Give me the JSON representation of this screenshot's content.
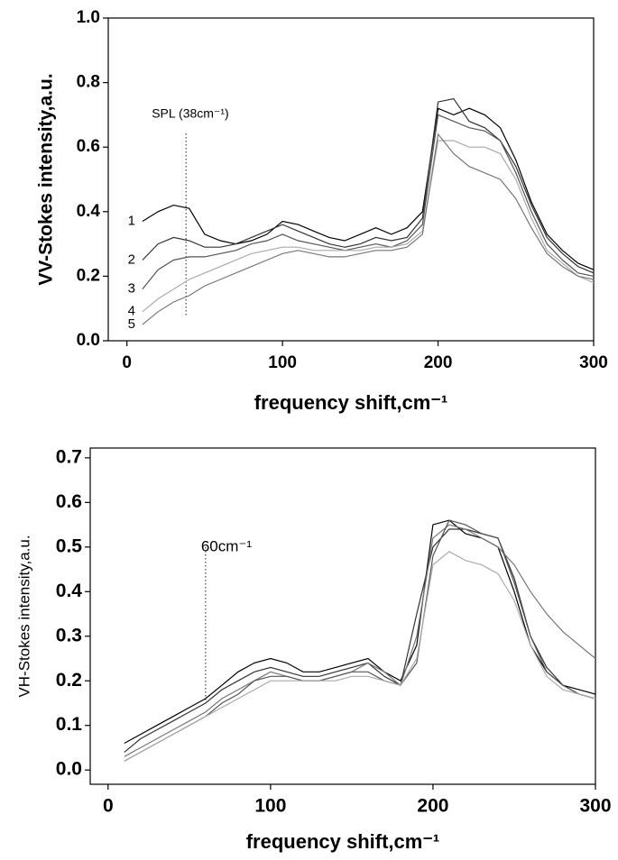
{
  "chart_data": [
    {
      "type": "line",
      "xlabel": "frequency shift,cm⁻¹",
      "ylabel": "VV-Stokes intensity,a.u.",
      "annotation": {
        "text": "SPL (38cm⁻¹)",
        "x": 38
      },
      "x": [
        10,
        20,
        30,
        40,
        50,
        60,
        70,
        80,
        90,
        100,
        110,
        120,
        130,
        140,
        150,
        160,
        170,
        180,
        190,
        200,
        210,
        220,
        230,
        240,
        250,
        260,
        270,
        280,
        290,
        300
      ],
      "xlim": [
        -12,
        300
      ],
      "xticks": [
        0,
        100,
        200,
        300
      ],
      "ylim": [
        0,
        1
      ],
      "yticks": [
        {
          "value": 0,
          "label": "0.0"
        },
        0.2,
        0.4,
        0.6,
        0.8,
        {
          "value": 1,
          "label": "1.0"
        }
      ],
      "series": [
        {
          "name": "1",
          "color": "#000000",
          "values": [
            0.37,
            0.4,
            0.42,
            0.41,
            0.33,
            0.31,
            0.3,
            0.31,
            0.33,
            0.37,
            0.36,
            0.34,
            0.32,
            0.31,
            0.33,
            0.35,
            0.33,
            0.35,
            0.4,
            0.72,
            0.7,
            0.72,
            0.7,
            0.66,
            0.56,
            0.43,
            0.33,
            0.28,
            0.24,
            0.22
          ]
        },
        {
          "name": "2",
          "color": "#333333",
          "values": [
            0.25,
            0.3,
            0.32,
            0.31,
            0.29,
            0.29,
            0.3,
            0.32,
            0.34,
            0.36,
            0.34,
            0.32,
            0.3,
            0.29,
            0.3,
            0.32,
            0.31,
            0.32,
            0.38,
            0.74,
            0.75,
            0.68,
            0.66,
            0.62,
            0.54,
            0.42,
            0.32,
            0.27,
            0.23,
            0.21
          ]
        },
        {
          "name": "3",
          "color": "#555555",
          "values": [
            0.16,
            0.22,
            0.25,
            0.26,
            0.26,
            0.27,
            0.28,
            0.3,
            0.31,
            0.33,
            0.31,
            0.3,
            0.29,
            0.28,
            0.29,
            0.3,
            0.29,
            0.31,
            0.36,
            0.7,
            0.68,
            0.66,
            0.65,
            0.62,
            0.52,
            0.4,
            0.3,
            0.25,
            0.21,
            0.2
          ]
        },
        {
          "name": "4",
          "color": "#aaaaaa",
          "values": [
            0.09,
            0.13,
            0.16,
            0.19,
            0.21,
            0.23,
            0.25,
            0.27,
            0.28,
            0.29,
            0.29,
            0.28,
            0.28,
            0.28,
            0.28,
            0.29,
            0.29,
            0.3,
            0.34,
            0.62,
            0.62,
            0.6,
            0.6,
            0.58,
            0.5,
            0.38,
            0.28,
            0.24,
            0.2,
            0.18
          ]
        },
        {
          "name": "5",
          "color": "#777777",
          "values": [
            0.05,
            0.09,
            0.12,
            0.14,
            0.17,
            0.19,
            0.21,
            0.23,
            0.25,
            0.27,
            0.28,
            0.27,
            0.26,
            0.26,
            0.27,
            0.28,
            0.28,
            0.29,
            0.33,
            0.64,
            0.58,
            0.54,
            0.52,
            0.5,
            0.44,
            0.35,
            0.27,
            0.23,
            0.2,
            0.19
          ]
        }
      ]
    },
    {
      "type": "line",
      "xlabel": "frequency shift,cm⁻¹",
      "ylabel": "VH-Stokes intensity,a.u.",
      "annotation": {
        "text": "60cm⁻¹",
        "x": 60
      },
      "x": [
        10,
        20,
        30,
        40,
        50,
        60,
        70,
        80,
        90,
        100,
        110,
        120,
        130,
        140,
        150,
        160,
        170,
        180,
        190,
        200,
        210,
        220,
        230,
        240,
        250,
        260,
        270,
        280,
        290,
        300
      ],
      "xlim": [
        -11,
        300
      ],
      "xticks": [
        0,
        100,
        200,
        300
      ],
      "ylim": [
        -0.032,
        0.722
      ],
      "yticks": [
        {
          "value": 0,
          "label": "0.0"
        },
        0.1,
        0.2,
        0.3,
        0.4,
        0.5,
        0.6,
        0.7
      ],
      "series": [
        {
          "color": "#000000",
          "values": [
            0.06,
            0.08,
            0.1,
            0.12,
            0.14,
            0.16,
            0.19,
            0.22,
            0.24,
            0.25,
            0.24,
            0.22,
            0.22,
            0.23,
            0.24,
            0.25,
            0.22,
            0.2,
            0.28,
            0.55,
            0.56,
            0.53,
            0.52,
            0.5,
            0.4,
            0.28,
            0.22,
            0.19,
            0.18,
            0.17
          ]
        },
        {
          "color": "#333333",
          "values": [
            0.04,
            0.07,
            0.09,
            0.11,
            0.13,
            0.15,
            0.18,
            0.2,
            0.22,
            0.23,
            0.22,
            0.21,
            0.21,
            0.22,
            0.23,
            0.24,
            0.21,
            0.19,
            0.35,
            0.5,
            0.54,
            0.54,
            0.53,
            0.52,
            0.43,
            0.3,
            0.23,
            0.19,
            0.17,
            0.16
          ]
        },
        {
          "color": "#777777",
          "values": [
            0.03,
            0.05,
            0.07,
            0.09,
            0.11,
            0.13,
            0.16,
            0.18,
            0.2,
            0.22,
            0.21,
            0.2,
            0.2,
            0.21,
            0.22,
            0.24,
            0.22,
            0.19,
            0.3,
            0.52,
            0.55,
            0.54,
            0.52,
            0.5,
            0.46,
            0.4,
            0.35,
            0.31,
            0.28,
            0.25
          ]
        },
        {
          "color": "#555555",
          "values": [
            0.02,
            0.04,
            0.06,
            0.08,
            0.1,
            0.12,
            0.15,
            0.17,
            0.2,
            0.21,
            0.21,
            0.2,
            0.2,
            0.21,
            0.22,
            0.22,
            0.2,
            0.19,
            0.24,
            0.48,
            0.56,
            0.55,
            0.53,
            0.52,
            0.42,
            0.3,
            0.22,
            0.19,
            0.17,
            0.16
          ]
        },
        {
          "color": "#aaaaaa",
          "values": [
            0.02,
            0.04,
            0.06,
            0.08,
            0.1,
            0.12,
            0.14,
            0.16,
            0.18,
            0.2,
            0.2,
            0.2,
            0.2,
            0.2,
            0.21,
            0.21,
            0.2,
            0.19,
            0.25,
            0.46,
            0.49,
            0.47,
            0.46,
            0.44,
            0.38,
            0.28,
            0.21,
            0.18,
            0.17,
            0.16
          ]
        }
      ]
    }
  ]
}
